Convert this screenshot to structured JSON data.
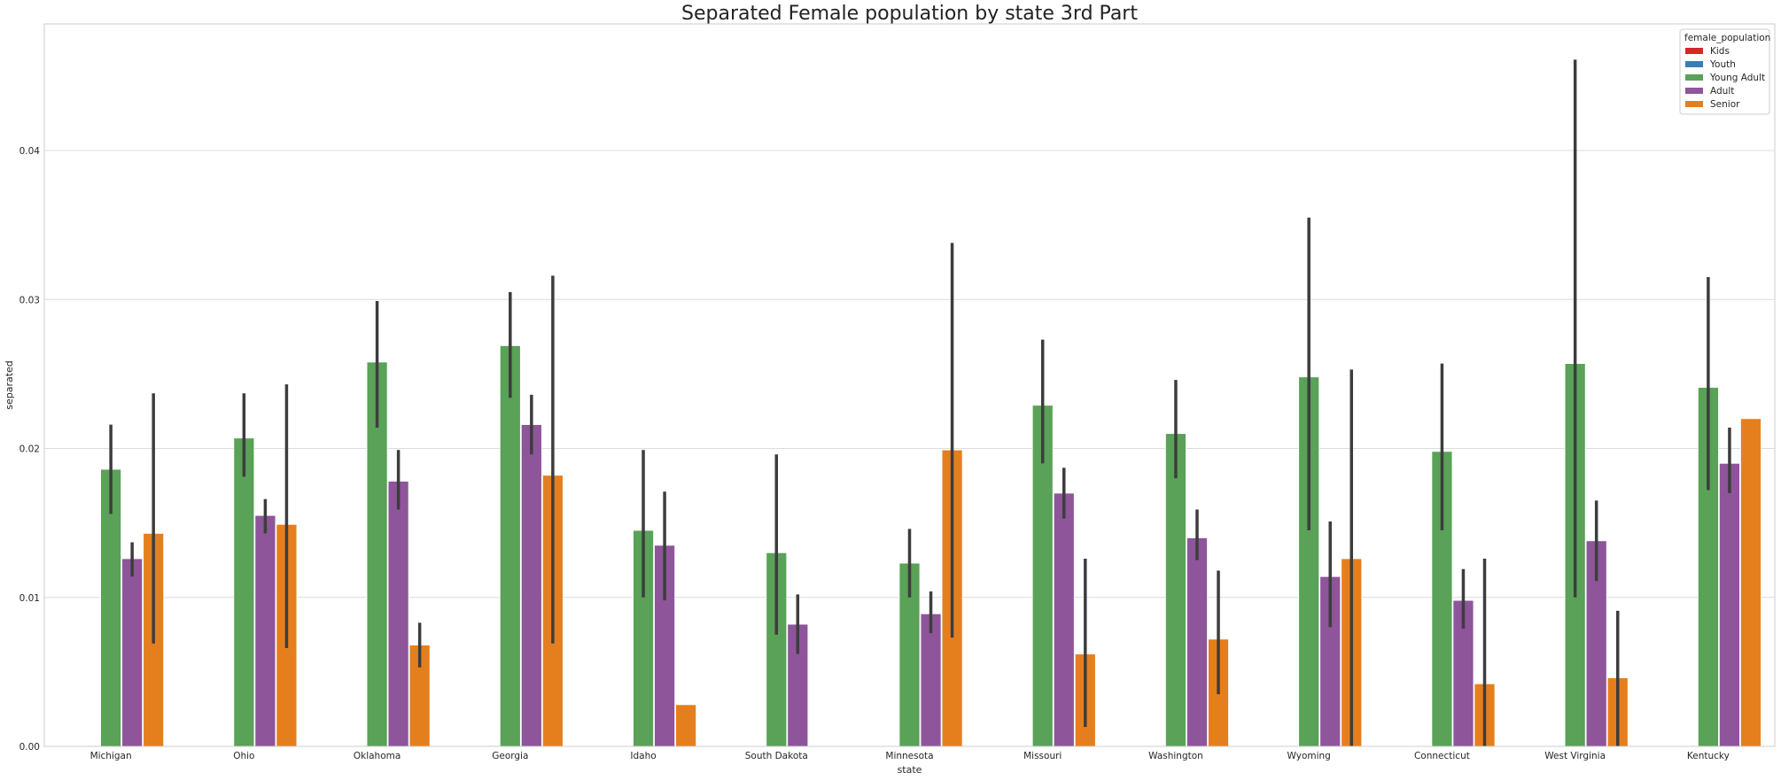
{
  "chart_data": {
    "type": "bar",
    "title": "Separated Female population by state 3rd Part",
    "xlabel": "state",
    "ylabel": "separated",
    "ylim": [
      0,
      0.0485
    ],
    "yticks": [
      "0.00",
      "0.01",
      "0.02",
      "0.03",
      "0.04"
    ],
    "ytick_values": [
      0,
      0.01,
      0.02,
      0.03,
      0.04
    ],
    "grid": true,
    "legend": {
      "title": "female_population",
      "placement": "top-right"
    },
    "categories": [
      "Michigan",
      "Ohio",
      "Oklahoma",
      "Georgia",
      "Idaho",
      "South Dakota",
      "Minnesota",
      "Missouri",
      "Washington",
      "Wyoming",
      "Connecticut",
      "West Virginia",
      "Kentucky"
    ],
    "series": [
      {
        "name": "Kids",
        "color": "#d62728",
        "values": [
          null,
          null,
          null,
          null,
          null,
          null,
          null,
          null,
          null,
          null,
          null,
          null,
          null
        ],
        "ci": [
          null,
          null,
          null,
          null,
          null,
          null,
          null,
          null,
          null,
          null,
          null,
          null,
          null
        ]
      },
      {
        "name": "Youth",
        "color": "#377eb8",
        "values": [
          null,
          null,
          null,
          null,
          null,
          null,
          null,
          null,
          null,
          null,
          null,
          null,
          null
        ],
        "ci": [
          null,
          null,
          null,
          null,
          null,
          null,
          null,
          null,
          null,
          null,
          null,
          null,
          null
        ]
      },
      {
        "name": "Young Adult",
        "color": "#59a257",
        "values": [
          0.0186,
          0.0207,
          0.0258,
          0.0269,
          0.0145,
          0.013,
          0.0123,
          0.0229,
          0.021,
          0.0248,
          0.0198,
          0.0257,
          0.0241
        ],
        "ci": [
          [
            0.0156,
            0.0216
          ],
          [
            0.0181,
            0.0237
          ],
          [
            0.0214,
            0.0299
          ],
          [
            0.0234,
            0.0305
          ],
          [
            0.01,
            0.0199
          ],
          [
            0.0075,
            0.0196
          ],
          [
            0.01,
            0.0146
          ],
          [
            0.019,
            0.0273
          ],
          [
            0.018,
            0.0246
          ],
          [
            0.0145,
            0.0355
          ],
          [
            0.0145,
            0.0257
          ],
          [
            0.01,
            0.0461
          ],
          [
            0.0172,
            0.0315
          ]
        ]
      },
      {
        "name": "Adult",
        "color": "#8e559b",
        "values": [
          0.0126,
          0.0155,
          0.0178,
          0.0216,
          0.0135,
          0.0082,
          0.0089,
          0.017,
          0.014,
          0.0114,
          0.0098,
          0.0138,
          0.019
        ],
        "ci": [
          [
            0.0114,
            0.0137
          ],
          [
            0.0143,
            0.0166
          ],
          [
            0.0159,
            0.0199
          ],
          [
            0.0196,
            0.0236
          ],
          [
            0.0098,
            0.0171
          ],
          [
            0.0062,
            0.0102
          ],
          [
            0.0076,
            0.0104
          ],
          [
            0.0153,
            0.0187
          ],
          [
            0.0125,
            0.0159
          ],
          [
            0.008,
            0.0151
          ],
          [
            0.0079,
            0.0119
          ],
          [
            0.0111,
            0.0165
          ],
          [
            0.017,
            0.0214
          ]
        ]
      },
      {
        "name": "Senior",
        "color": "#e57f1e",
        "values": [
          0.0143,
          0.0149,
          0.0068,
          0.0182,
          0.0028,
          null,
          0.0199,
          0.0062,
          0.0072,
          0.0126,
          0.0042,
          0.0046,
          0.022
        ],
        "ci": [
          [
            0.0069,
            0.0237
          ],
          [
            0.0066,
            0.0243
          ],
          [
            0.0053,
            0.0083
          ],
          [
            0.0069,
            0.0316
          ],
          null,
          null,
          [
            0.0073,
            0.0338
          ],
          [
            0.0013,
            0.0126
          ],
          [
            0.0035,
            0.0118
          ],
          [
            0.0,
            0.0253
          ],
          [
            0.0,
            0.0126
          ],
          [
            0.0,
            0.0091
          ],
          null
        ]
      }
    ]
  }
}
